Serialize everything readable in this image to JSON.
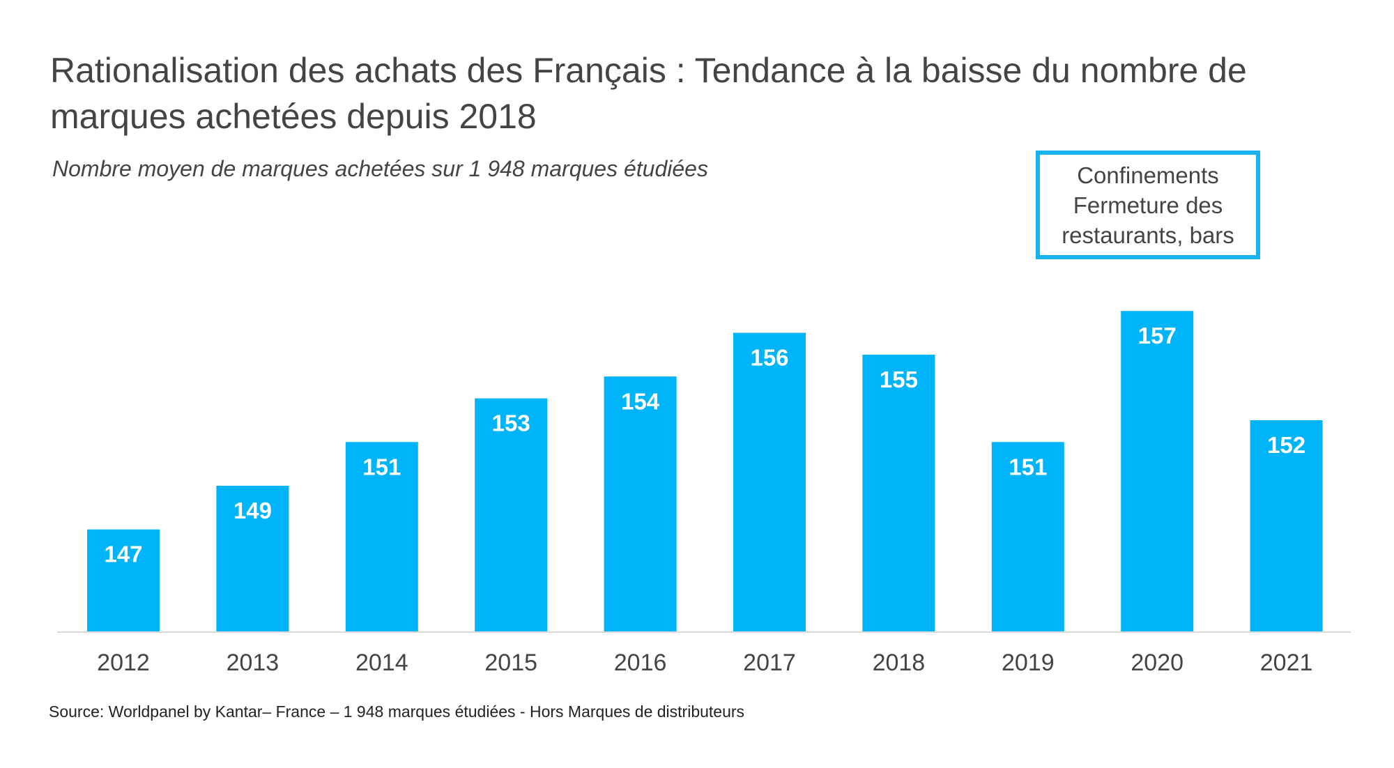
{
  "header": {
    "title": "Rationalisation des achats des Français : Tendance à la baisse du nombre de marques achetées depuis 2018",
    "subtitle": "Nombre moyen de marques achetées sur 1 948 marques étudiées"
  },
  "annotation": {
    "lines": [
      "Confinements",
      "Fermeture des",
      "restaurants, bars"
    ],
    "border_color": "#1ab2ee"
  },
  "footer": {
    "source": "Source: Worldpanel by Kantar– France – 1 948 marques étudiées - Hors Marques de distributeurs"
  },
  "chart_data": {
    "type": "bar",
    "categories": [
      "2012",
      "2013",
      "2014",
      "2015",
      "2016",
      "2017",
      "2018",
      "2019",
      "2020",
      "2021"
    ],
    "values": [
      147,
      149,
      151,
      153,
      154,
      156,
      155,
      151,
      157,
      152
    ],
    "data_labels": [
      "147",
      "149",
      "151",
      "153",
      "154",
      "156",
      "155",
      "151",
      "157",
      "152"
    ],
    "ylim": [
      142.3,
      157.9
    ],
    "bar_color": "#00b4fa",
    "grid": false,
    "legend": "none"
  }
}
